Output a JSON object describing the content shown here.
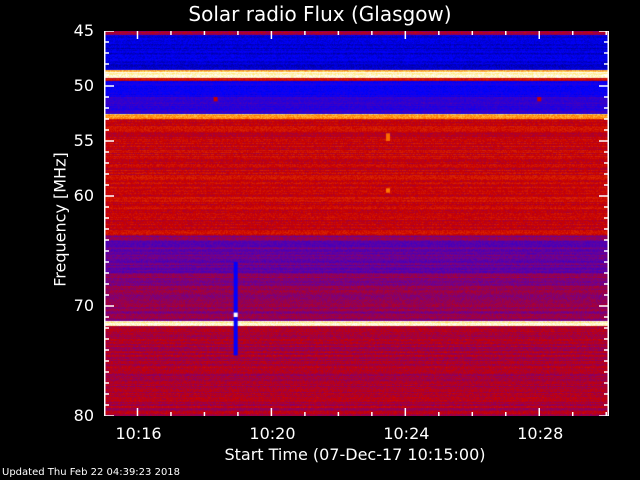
{
  "chart_data": {
    "type": "heatmap",
    "title": "Solar radio Flux (Glasgow)",
    "xlabel": "Start Time (07-Dec-17 10:15:00)",
    "ylabel": "Frequency [MHz]",
    "xlim": [
      "10:15:00",
      "10:30:05"
    ],
    "ylim": [
      45,
      80
    ],
    "y_inverted": true,
    "xticks": [
      "10:16",
      "10:20",
      "10:24",
      "10:28"
    ],
    "yticks": [
      45,
      50,
      55,
      60,
      70,
      80
    ],
    "colormap": [
      "#000000",
      "#0000ff",
      "#6a0096",
      "#c80000",
      "#ff7800",
      "#ffe664",
      "#ffffff"
    ],
    "bands": [
      {
        "from": 45.0,
        "to": 45.3,
        "level": 0.55
      },
      {
        "from": 45.3,
        "to": 48.5,
        "level": 0.21
      },
      {
        "from": 48.5,
        "to": 48.7,
        "level": 0.85
      },
      {
        "from": 48.7,
        "to": 49.2,
        "level": 0.97
      },
      {
        "from": 49.2,
        "to": 49.5,
        "level": 0.62
      },
      {
        "from": 49.5,
        "to": 51.0,
        "level": 0.27
      },
      {
        "from": 51.0,
        "to": 52.5,
        "level": 0.33
      },
      {
        "from": 52.5,
        "to": 53.0,
        "level": 0.85
      },
      {
        "from": 53.0,
        "to": 63.5,
        "level": 0.6
      },
      {
        "from": 63.5,
        "to": 64.0,
        "level": 0.5
      },
      {
        "from": 64.0,
        "to": 67.0,
        "level": 0.44
      },
      {
        "from": 67.0,
        "to": 71.3,
        "level": 0.5
      },
      {
        "from": 71.3,
        "to": 71.8,
        "level": 0.95
      },
      {
        "from": 71.8,
        "to": 80.0,
        "level": 0.55
      }
    ],
    "events": [
      {
        "time": "10:18:56",
        "freq": [
          66,
          74.5
        ],
        "level": 0.25
      },
      {
        "time": "10:18:56",
        "freq": [
          70.6,
          71.0
        ],
        "level": 1.0
      },
      {
        "time": "10:23:29",
        "freq": [
          54.3,
          55.0
        ],
        "level": 0.78
      },
      {
        "time": "10:23:29",
        "freq": [
          59.3,
          59.7
        ],
        "level": 0.8
      },
      {
        "time": "10:18:20",
        "freq": [
          51.0,
          51.4
        ],
        "level": 0.6
      },
      {
        "time": "10:28:00",
        "freq": [
          51.0,
          51.4
        ],
        "level": 0.6
      }
    ]
  },
  "footer": {
    "updated": "Updated Thu Feb 22 04:39:23 2018"
  }
}
